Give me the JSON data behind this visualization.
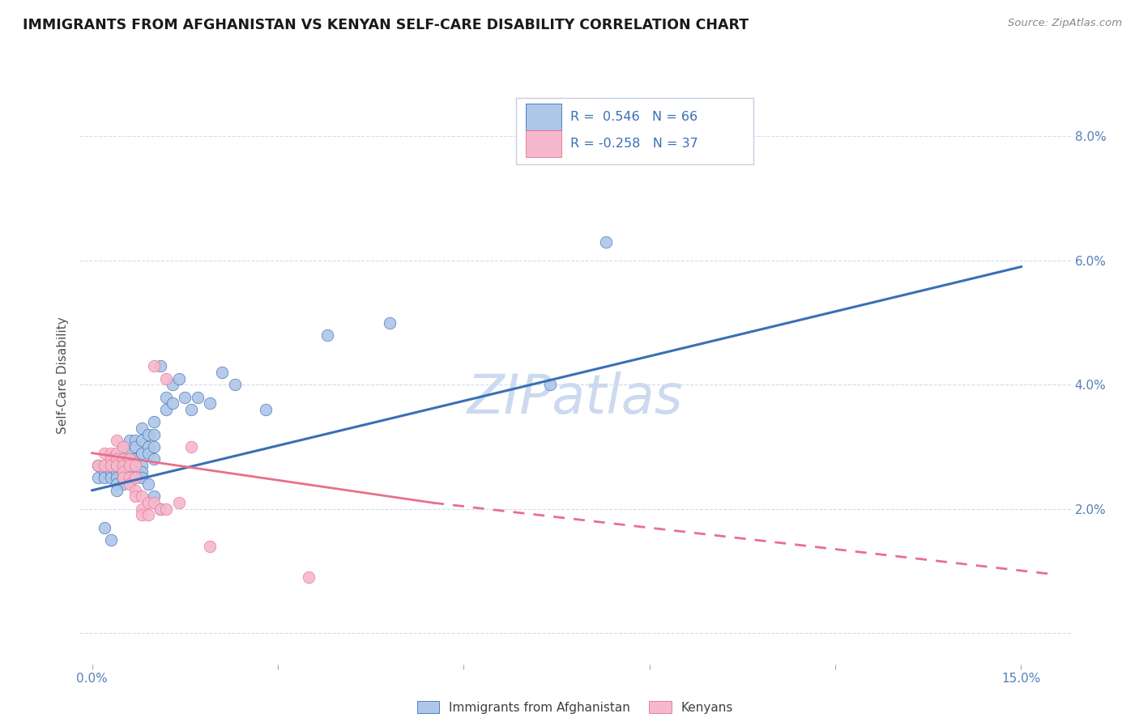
{
  "title": "IMMIGRANTS FROM AFGHANISTAN VS KENYAN SELF-CARE DISABILITY CORRELATION CHART",
  "source": "Source: ZipAtlas.com",
  "xlim": [
    -0.002,
    0.158
  ],
  "ylim": [
    -0.005,
    0.088
  ],
  "ylabel": "Self-Care Disability",
  "legend_label1": "Immigrants from Afghanistan",
  "legend_label2": "Kenyans",
  "r1": 0.546,
  "n1": 66,
  "r2": -0.258,
  "n2": 37,
  "color_blue": "#aec6e8",
  "color_pink": "#f5b8cc",
  "line_color_blue": "#3a6fb5",
  "line_color_pink": "#e8708a",
  "watermark_color": "#ccdaf0",
  "blue_points": [
    [
      0.001,
      0.027
    ],
    [
      0.001,
      0.025
    ],
    [
      0.002,
      0.026
    ],
    [
      0.002,
      0.025
    ],
    [
      0.003,
      0.028
    ],
    [
      0.003,
      0.026
    ],
    [
      0.003,
      0.025
    ],
    [
      0.004,
      0.028
    ],
    [
      0.004,
      0.027
    ],
    [
      0.004,
      0.026
    ],
    [
      0.004,
      0.025
    ],
    [
      0.004,
      0.024
    ],
    [
      0.005,
      0.03
    ],
    [
      0.005,
      0.028
    ],
    [
      0.005,
      0.027
    ],
    [
      0.005,
      0.026
    ],
    [
      0.005,
      0.025
    ],
    [
      0.005,
      0.024
    ],
    [
      0.006,
      0.031
    ],
    [
      0.006,
      0.029
    ],
    [
      0.006,
      0.028
    ],
    [
      0.006,
      0.027
    ],
    [
      0.006,
      0.026
    ],
    [
      0.006,
      0.025
    ],
    [
      0.007,
      0.031
    ],
    [
      0.007,
      0.03
    ],
    [
      0.007,
      0.028
    ],
    [
      0.007,
      0.027
    ],
    [
      0.007,
      0.026
    ],
    [
      0.007,
      0.025
    ],
    [
      0.008,
      0.033
    ],
    [
      0.008,
      0.031
    ],
    [
      0.008,
      0.029
    ],
    [
      0.008,
      0.027
    ],
    [
      0.008,
      0.026
    ],
    [
      0.008,
      0.025
    ],
    [
      0.009,
      0.032
    ],
    [
      0.009,
      0.03
    ],
    [
      0.009,
      0.029
    ],
    [
      0.01,
      0.034
    ],
    [
      0.01,
      0.032
    ],
    [
      0.01,
      0.03
    ],
    [
      0.01,
      0.028
    ],
    [
      0.011,
      0.043
    ],
    [
      0.012,
      0.038
    ],
    [
      0.012,
      0.036
    ],
    [
      0.013,
      0.04
    ],
    [
      0.013,
      0.037
    ],
    [
      0.014,
      0.041
    ],
    [
      0.015,
      0.038
    ],
    [
      0.016,
      0.036
    ],
    [
      0.017,
      0.038
    ],
    [
      0.019,
      0.037
    ],
    [
      0.021,
      0.042
    ],
    [
      0.023,
      0.04
    ],
    [
      0.028,
      0.036
    ],
    [
      0.038,
      0.048
    ],
    [
      0.048,
      0.05
    ],
    [
      0.074,
      0.04
    ],
    [
      0.083,
      0.063
    ],
    [
      0.002,
      0.017
    ],
    [
      0.003,
      0.015
    ],
    [
      0.004,
      0.023
    ],
    [
      0.009,
      0.024
    ],
    [
      0.01,
      0.022
    ],
    [
      0.011,
      0.02
    ]
  ],
  "pink_points": [
    [
      0.001,
      0.027
    ],
    [
      0.002,
      0.029
    ],
    [
      0.002,
      0.027
    ],
    [
      0.003,
      0.029
    ],
    [
      0.003,
      0.028
    ],
    [
      0.003,
      0.027
    ],
    [
      0.004,
      0.031
    ],
    [
      0.004,
      0.029
    ],
    [
      0.004,
      0.028
    ],
    [
      0.004,
      0.027
    ],
    [
      0.005,
      0.03
    ],
    [
      0.005,
      0.028
    ],
    [
      0.005,
      0.027
    ],
    [
      0.005,
      0.026
    ],
    [
      0.005,
      0.025
    ],
    [
      0.006,
      0.028
    ],
    [
      0.006,
      0.027
    ],
    [
      0.006,
      0.025
    ],
    [
      0.006,
      0.024
    ],
    [
      0.007,
      0.027
    ],
    [
      0.007,
      0.025
    ],
    [
      0.007,
      0.023
    ],
    [
      0.007,
      0.022
    ],
    [
      0.008,
      0.022
    ],
    [
      0.008,
      0.02
    ],
    [
      0.008,
      0.019
    ],
    [
      0.009,
      0.021
    ],
    [
      0.009,
      0.019
    ],
    [
      0.01,
      0.043
    ],
    [
      0.01,
      0.021
    ],
    [
      0.011,
      0.02
    ],
    [
      0.012,
      0.041
    ],
    [
      0.012,
      0.02
    ],
    [
      0.014,
      0.021
    ],
    [
      0.016,
      0.03
    ],
    [
      0.019,
      0.014
    ],
    [
      0.035,
      0.009
    ]
  ],
  "blue_line": [
    [
      0.0,
      0.023
    ],
    [
      0.15,
      0.059
    ]
  ],
  "pink_line_solid": [
    [
      0.0,
      0.029
    ],
    [
      0.055,
      0.021
    ]
  ],
  "pink_line_dashed": [
    [
      0.055,
      0.021
    ],
    [
      0.155,
      0.0095
    ]
  ]
}
